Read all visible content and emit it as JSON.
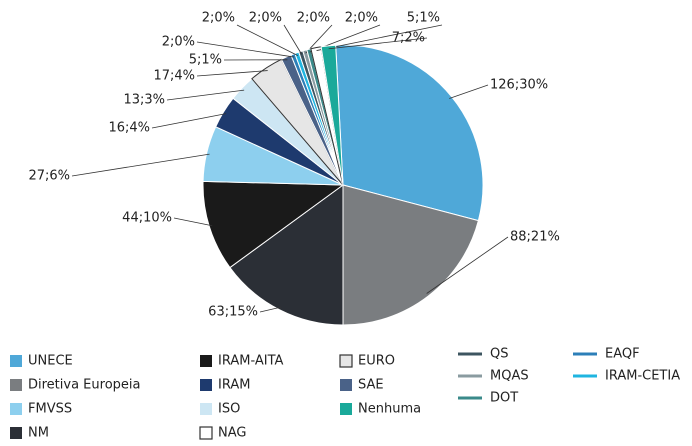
{
  "chart_data": {
    "type": "pie",
    "categories": [
      "UNECE",
      "Diretiva Europeia",
      "NM",
      "IRAM-AITA",
      "FMVSS",
      "IRAM",
      "ISO",
      "EURO",
      "SAE",
      "EAQF",
      "IRAM-CETIA",
      "QS",
      "MQAS",
      "DOT",
      "NAG",
      "Nenhuma"
    ],
    "values": [
      126,
      88,
      63,
      44,
      27,
      16,
      13,
      17,
      5,
      2,
      2,
      2,
      2,
      2,
      5,
      7
    ],
    "value_labels": [
      "126;30%",
      "88;21%",
      "63;15%",
      "44;10%",
      "27;6%",
      "16;4%",
      "13;3%",
      "17;4%",
      "5;1%",
      "2;0%",
      "2;0%",
      "2;0%",
      "2;0%",
      "2;0%",
      "5;1%",
      "7;2%"
    ],
    "colors": [
      "#4fa8d8",
      "#7a7d80",
      "#2b2f36",
      "#1a1a1a",
      "#8dcfee",
      "#1e3a6e",
      "#cde6f3",
      "#e6e6e6",
      "#4a6288",
      "#2c7fb8",
      "#1fb5e0",
      "#3d5560",
      "#8a9ba0",
      "#3a8a8a",
      "#ffffff",
      "#1aa99a"
    ],
    "legend_markers": [
      "square",
      "square",
      "square",
      "square",
      "square",
      "square",
      "square",
      "square",
      "square",
      "line",
      "line",
      "line",
      "line",
      "line",
      "square",
      "square"
    ],
    "legend": true
  }
}
